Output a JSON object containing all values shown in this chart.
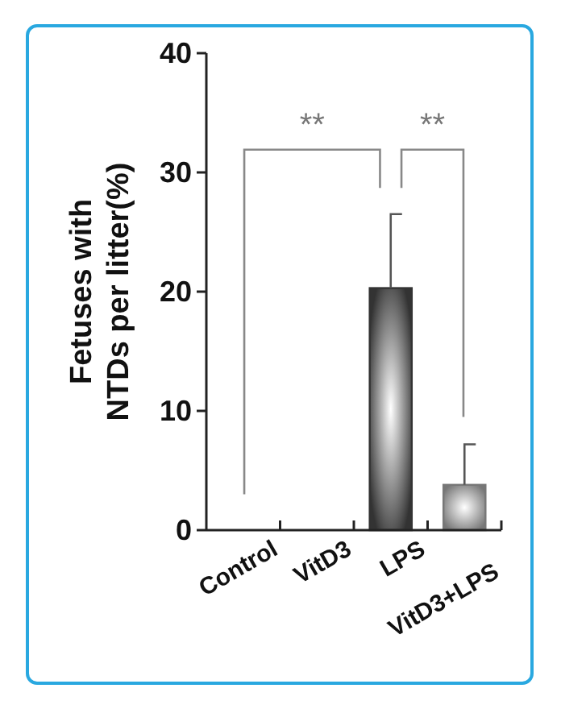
{
  "chart_data": {
    "type": "bar",
    "ylabel": "Fetuses with\nNTDs per litter(%)",
    "categories": [
      "Control",
      "VitD3",
      "LPS",
      "VitD3+LPS"
    ],
    "values": [
      0,
      0,
      20.3,
      3.8
    ],
    "colors": [
      "#333333",
      "#333333",
      "#333333",
      "#777777"
    ],
    "errors": [
      null,
      null,
      [
        20.3,
        26.5
      ],
      [
        3.8,
        7.2
      ]
    ],
    "ylim": [
      0,
      40
    ],
    "yticks": [
      0,
      10,
      20,
      30,
      40
    ],
    "annotations": [
      "**",
      "**"
    ],
    "grid": false
  }
}
